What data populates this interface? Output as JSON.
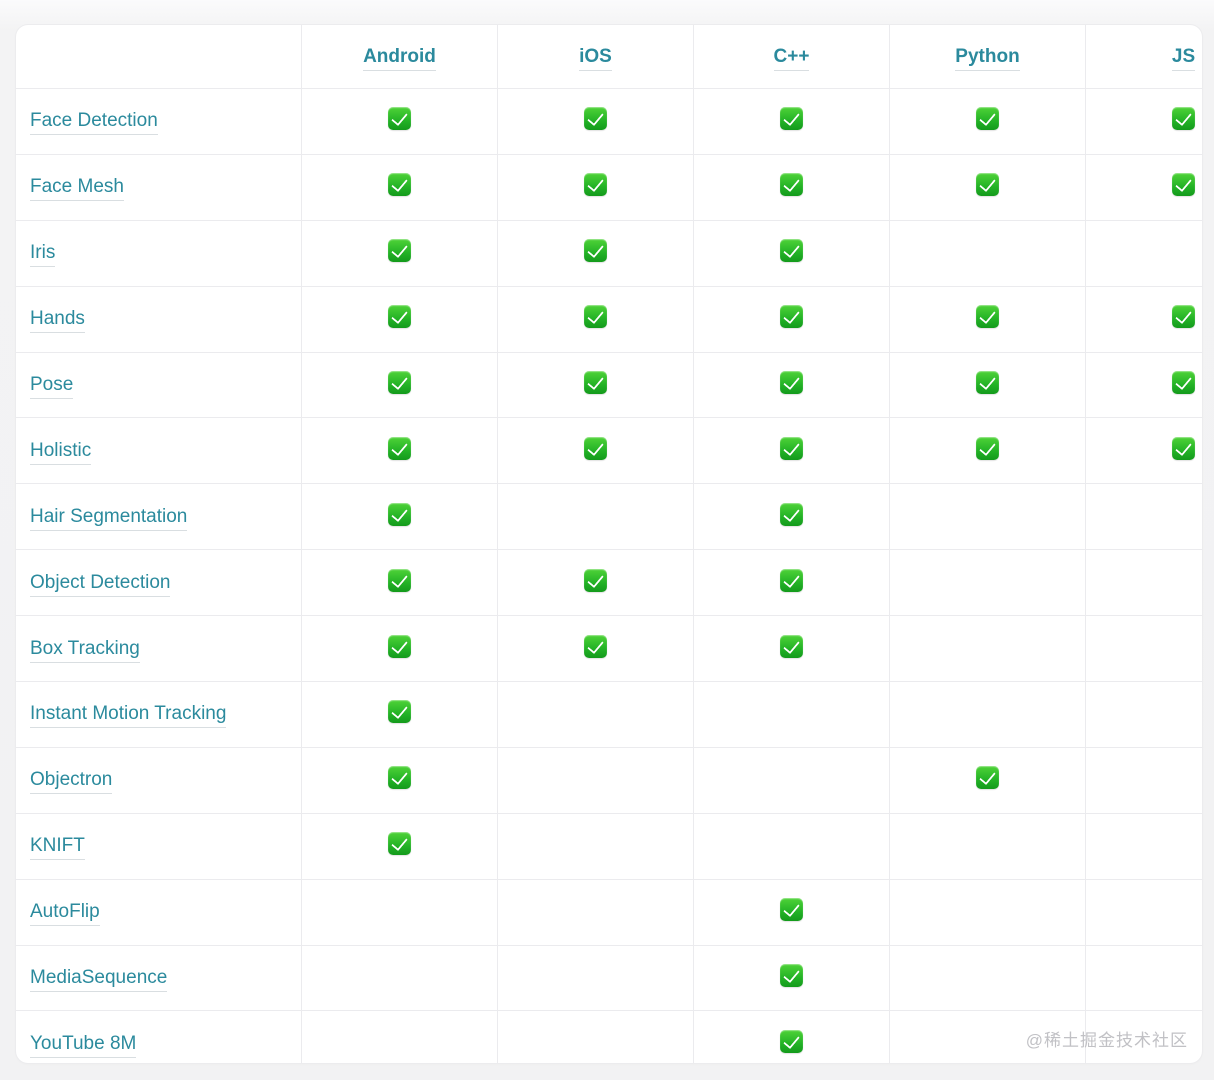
{
  "table": {
    "corner_label": "",
    "columns": [
      "Android",
      "iOS",
      "C++",
      "Python",
      "JS"
    ],
    "rows": [
      {
        "label": "Face Detection",
        "support": [
          true,
          true,
          true,
          true,
          true
        ]
      },
      {
        "label": "Face Mesh",
        "support": [
          true,
          true,
          true,
          true,
          true
        ]
      },
      {
        "label": "Iris",
        "support": [
          true,
          true,
          true,
          false,
          false
        ]
      },
      {
        "label": "Hands",
        "support": [
          true,
          true,
          true,
          true,
          true
        ]
      },
      {
        "label": "Pose",
        "support": [
          true,
          true,
          true,
          true,
          true
        ]
      },
      {
        "label": "Holistic",
        "support": [
          true,
          true,
          true,
          true,
          true
        ]
      },
      {
        "label": "Hair Segmentation",
        "support": [
          true,
          false,
          true,
          false,
          false
        ]
      },
      {
        "label": "Object Detection",
        "support": [
          true,
          true,
          true,
          false,
          false
        ]
      },
      {
        "label": "Box Tracking",
        "support": [
          true,
          true,
          true,
          false,
          false
        ]
      },
      {
        "label": "Instant Motion Tracking",
        "support": [
          true,
          false,
          false,
          false,
          false
        ]
      },
      {
        "label": "Objectron",
        "support": [
          true,
          false,
          false,
          true,
          false
        ]
      },
      {
        "label": "KNIFT",
        "support": [
          true,
          false,
          false,
          false,
          false
        ]
      },
      {
        "label": "AutoFlip",
        "support": [
          false,
          false,
          true,
          false,
          false
        ]
      },
      {
        "label": "MediaSequence",
        "support": [
          false,
          false,
          true,
          false,
          false
        ]
      },
      {
        "label": "YouTube 8M",
        "support": [
          false,
          false,
          true,
          false,
          false
        ]
      }
    ]
  },
  "icons": {
    "check": "white-check-mark-on-green-square"
  },
  "colors": {
    "link_teal": "#2b8a9d",
    "check_green_top": "#4fd338",
    "check_green_bottom": "#149a1c",
    "table_border": "#ebebee",
    "page_background": "#f3f3f4",
    "card_background": "#ffffff",
    "watermark_gray": "#c1c1c5"
  },
  "watermark": {
    "text": "@稀土掘金技术社区"
  }
}
